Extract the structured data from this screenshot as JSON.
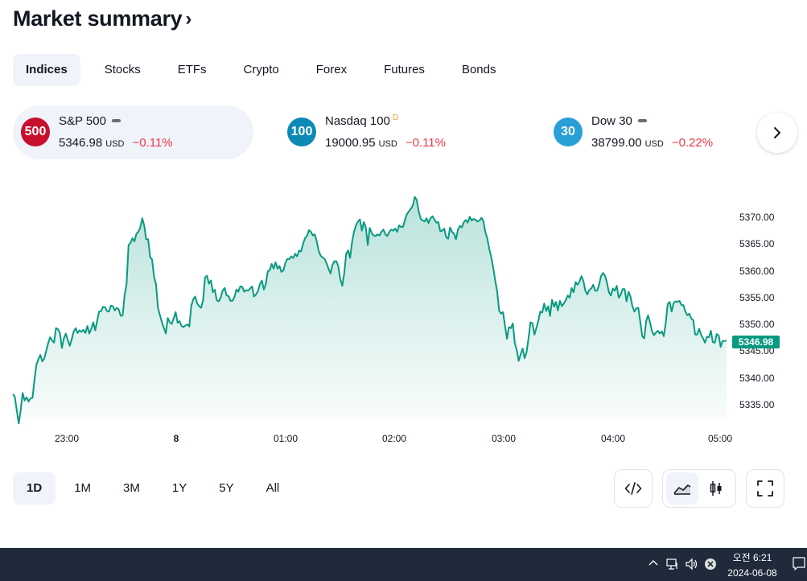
{
  "header": {
    "title": "Market summary",
    "chevron": "›"
  },
  "tabs": [
    {
      "label": "Indices",
      "active": true
    },
    {
      "label": "Stocks"
    },
    {
      "label": "ETFs"
    },
    {
      "label": "Crypto"
    },
    {
      "label": "Forex"
    },
    {
      "label": "Futures"
    },
    {
      "label": "Bonds"
    }
  ],
  "indices": [
    {
      "badge": "500",
      "badge_color": "#c8102e",
      "name": "S&P 500",
      "status_icon": "dash-icon",
      "price": "5346.98",
      "currency": "USD",
      "change": "−0.11%"
    },
    {
      "badge": "100",
      "badge_color": "#0c8ab5",
      "name": "Nasdaq 100",
      "flag": "D",
      "price": "19000.95",
      "currency": "USD",
      "change": "−0.11%"
    },
    {
      "badge": "30",
      "badge_color": "#2a9fd6",
      "name": "Dow 30",
      "status_icon": "dash-icon",
      "price": "38799.00",
      "currency": "USD",
      "change": "−0.22%"
    }
  ],
  "chart_data": {
    "type": "area",
    "series": [
      {
        "values": [
          5337.0,
          5336.5,
          5333.9,
          5331.5,
          5334.0,
          5337.2,
          5335.8,
          5336.4,
          5335.6,
          5336.2,
          5336.3,
          5339.6,
          5342.4,
          5343.5,
          5344.3,
          5343.1,
          5343.6,
          5345.0,
          5346.5,
          5347.6,
          5347.0,
          5346.6,
          5349.3,
          5349.1,
          5348.4,
          5345.6,
          5347.4,
          5348.3,
          5347.1,
          5346.0,
          5347.2,
          5348.6,
          5349.3,
          5348.4,
          5348.9,
          5348.6,
          5349.0,
          5348.4,
          5349.7,
          5348.3,
          5349.2,
          5350.4,
          5348.9,
          5350.7,
          5352.4,
          5352.5,
          5353.3,
          5353.2,
          5352.5,
          5352.4,
          5353.5,
          5353.4,
          5352.6,
          5353.1,
          5352.8,
          5351.6,
          5351.7,
          5355.5,
          5357.5,
          5364.8,
          5365.2,
          5366.1,
          5365.5,
          5366.9,
          5367.3,
          5368.1,
          5369.8,
          5368.4,
          5365.9,
          5365.9,
          5362.6,
          5362.1,
          5358.9,
          5357.5,
          5353.1,
          5351.7,
          5350.4,
          5349.4,
          5348.3,
          5351.2,
          5350.4,
          5350.1,
          5351.1,
          5352.3,
          5350.3,
          5350.6,
          5349.7,
          5349.5,
          5349.8,
          5350.0,
          5349.6,
          5353.5,
          5354.7,
          5355.2,
          5353.9,
          5353.4,
          5353.1,
          5354.5,
          5358.8,
          5359.1,
          5357.6,
          5358.2,
          5356.0,
          5356.5,
          5354.5,
          5354.3,
          5355.0,
          5356.3,
          5356.8,
          5355.4,
          5355.3,
          5354.4,
          5354.4,
          5355.1,
          5356.5,
          5356.1,
          5357.1,
          5357.0,
          5356.1,
          5356.4,
          5356.3,
          5356.7,
          5357.1,
          5355.2,
          5355.6,
          5356.2,
          5357.5,
          5358.2,
          5356.5,
          5357.5,
          5359.9,
          5360.1,
          5361.3,
          5360.4,
          5361.6,
          5360.4,
          5360.9,
          5359.8,
          5360.1,
          5361.5,
          5362.2,
          5362.2,
          5362.7,
          5362.4,
          5363.2,
          5362.7,
          5363.8,
          5363.6,
          5365.0,
          5366.1,
          5366.5,
          5367.6,
          5367.3,
          5366.6,
          5366.8,
          5365.5,
          5363.7,
          5362.8,
          5362.5,
          5362.2,
          5361.4,
          5360.4,
          5359.5,
          5361.1,
          5361.8,
          5361.8,
          5360.8,
          5358.5,
          5357.2,
          5359.5,
          5363.2,
          5363.8,
          5362.4,
          5365.4,
          5367.3,
          5368.5,
          5369.2,
          5369.6,
          5367.5,
          5369.1,
          5368.1,
          5364.8,
          5368.0,
          5367.1,
          5366.6,
          5366.5,
          5366.8,
          5366.6,
          5367.3,
          5367.7,
          5366.8,
          5366.5,
          5367.3,
          5367.7,
          5367.5,
          5367.9,
          5367.3,
          5368.5,
          5368.2,
          5368.2,
          5369.6,
          5370.6,
          5371.1,
          5371.6,
          5372.2,
          5373.8,
          5373.2,
          5371.1,
          5369.7,
          5369.4,
          5369.2,
          5369.8,
          5368.9,
          5369.8,
          5370.2,
          5369.6,
          5369.0,
          5369.1,
          5367.4,
          5367.5,
          5367.9,
          5366.3,
          5366.0,
          5368.1,
          5367.3,
          5366.9,
          5365.9,
          5367.7,
          5368.4,
          5368.1,
          5369.1,
          5369.5,
          5369.0,
          5370.1,
          5369.4,
          5369.7,
          5369.5,
          5369.2,
          5369.4,
          5369.9,
          5369.3,
          5367.2,
          5366.0,
          5364.1,
          5362.5,
          5360.6,
          5358.2,
          5356.2,
          5352.6,
          5352.0,
          5352.3,
          5349.8,
          5347.3,
          5349.5,
          5349.3,
          5350.2,
          5346.5,
          5345.2,
          5343.2,
          5344.4,
          5345.5,
          5343.7,
          5344.8,
          5347.4,
          5350.4,
          5350.2,
          5348.1,
          5349.3,
          5350.7,
          5352.4,
          5352.2,
          5353.9,
          5352.5,
          5353.4,
          5351.6,
          5354.6,
          5353.3,
          5354.2,
          5352.6,
          5354.4,
          5353.4,
          5353.9,
          5354.5,
          5355.4,
          5355.0,
          5356.8,
          5356.0,
          5357.9,
          5357.4,
          5358.0,
          5359.0,
          5358.1,
          5356.3,
          5355.6,
          5356.4,
          5356.7,
          5357.4,
          5356.3,
          5356.3,
          5357.4,
          5359.0,
          5359.6,
          5359.1,
          5357.8,
          5356.0,
          5355.4,
          5356.7,
          5356.3,
          5357.2,
          5355.0,
          5355.5,
          5356.6,
          5356.6,
          5354.3,
          5356.1,
          5355.2,
          5353.4,
          5352.4,
          5353.0,
          5353.1,
          5350.5,
          5347.8,
          5347.4,
          5350.6,
          5351.7,
          5350.3,
          5348.7,
          5348.0,
          5348.5,
          5348.8,
          5348.3,
          5348.7,
          5347.8,
          5350.4,
          5353.8,
          5354.2,
          5352.4,
          5354.0,
          5354.3,
          5354.2,
          5354.4,
          5353.6,
          5353.6,
          5352.4,
          5351.7,
          5352.0,
          5351.1,
          5350.8,
          5348.1,
          5348.1,
          5349.2,
          5348.1,
          5347.4,
          5346.6,
          5347.7,
          5347.6,
          5348.8,
          5346.7,
          5346.6,
          5348.2,
          5347.9,
          5345.8,
          5346.9,
          5346.9,
          5346.98
        ]
      }
    ],
    "x_ticks": [
      "23:00",
      "8",
      "01:00",
      "02:00",
      "03:00",
      "04:00",
      "05:00"
    ],
    "y_ticks": [
      "5370.00",
      "5365.00",
      "5360.00",
      "5355.00",
      "5350.00",
      "5345.00",
      "5340.00",
      "5335.00"
    ],
    "ylim": [
      5331.5,
      5374.0
    ],
    "last_value": "5346.98",
    "line_color": "#089981",
    "grid": false
  },
  "ranges": [
    {
      "label": "1D",
      "active": true
    },
    {
      "label": "1M"
    },
    {
      "label": "3M"
    },
    {
      "label": "1Y"
    },
    {
      "label": "5Y"
    },
    {
      "label": "All"
    }
  ],
  "taskbar": {
    "time": "오전 6:21",
    "date": "2024-06-08"
  }
}
